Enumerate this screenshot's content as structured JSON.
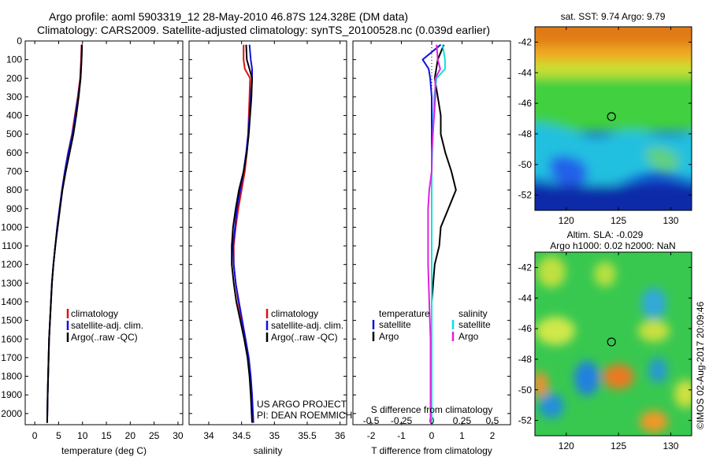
{
  "figure": {
    "title_line1": "Argo profile: aoml 5903319_12 28-May-2010 46.87S 124.328E (DM data)",
    "title_line2": "Climatology: CARS2009. Satellite-adjusted climatology: synTS_20100528.nc (0.039d earlier)",
    "project_line1": "US ARGO PROJECT",
    "project_line2": "PI: DEAN ROEMMICH",
    "credit": "©IMOS 02-Aug-2017 20:09:46"
  },
  "colors": {
    "climatology": "#e01010",
    "satellite": "#1010e0",
    "argo": "#000000",
    "argo_s": "#e020e0",
    "satellite_s": "#10e0e0"
  },
  "chart_data": [
    {
      "type": "line",
      "id": "temperature",
      "xlabel": "temperature (deg C)",
      "ylabel": "",
      "xlim": [
        -2,
        31
      ],
      "ylim": [
        2060,
        0
      ],
      "xticks": [
        "0",
        "5",
        "10",
        "15",
        "20",
        "25",
        "30"
      ],
      "xtick_values": [
        0,
        5,
        10,
        15,
        20,
        25,
        30
      ],
      "yticks": [
        "0",
        "100",
        "200",
        "300",
        "400",
        "500",
        "600",
        "700",
        "800",
        "900",
        "1000",
        "1100",
        "1200",
        "1300",
        "1400",
        "1500",
        "1600",
        "1700",
        "1800",
        "1900",
        "2000"
      ],
      "ytick_values": [
        0,
        100,
        200,
        300,
        400,
        500,
        600,
        700,
        800,
        900,
        1000,
        1100,
        1200,
        1300,
        1400,
        1500,
        1600,
        1700,
        1800,
        1900,
        2000
      ],
      "legend": [
        "climatology",
        "satellite-adj. clim.",
        "Argo(..raw -QC)"
      ],
      "series": [
        {
          "name": "climatology",
          "color_key": "climatology",
          "depth": [
            20,
            100,
            200,
            300,
            400,
            500,
            600,
            700,
            800,
            900,
            1000,
            1100,
            1200,
            1300,
            1400,
            1500,
            1600,
            1700,
            1800,
            1900,
            2050
          ],
          "values": [
            9.8,
            9.7,
            9.5,
            9.0,
            8.4,
            7.8,
            7.0,
            6.3,
            5.7,
            5.2,
            4.7,
            4.3,
            3.9,
            3.6,
            3.4,
            3.2,
            3.0,
            2.9,
            2.8,
            2.7,
            2.6
          ]
        },
        {
          "name": "satellite",
          "color_key": "satellite",
          "depth": [
            20,
            100,
            200,
            300,
            400,
            500,
            600,
            700,
            800,
            900,
            1000,
            1100,
            1200,
            1300,
            1400,
            1500,
            1600,
            1700,
            1800,
            1900,
            2050
          ],
          "values": [
            9.9,
            9.8,
            9.6,
            9.1,
            8.5,
            7.9,
            7.0,
            6.3,
            5.7,
            5.2,
            4.7,
            4.3,
            3.9,
            3.6,
            3.4,
            3.2,
            3.0,
            2.9,
            2.8,
            2.7,
            2.6
          ]
        },
        {
          "name": "Argo",
          "color_key": "argo",
          "depth": [
            20,
            100,
            200,
            300,
            400,
            500,
            600,
            700,
            800,
            900,
            1000,
            1100,
            1200,
            1300,
            1400,
            1500,
            1600,
            1700,
            1800,
            1900,
            2050
          ],
          "values": [
            9.9,
            9.8,
            9.6,
            9.2,
            8.7,
            8.1,
            7.3,
            6.5,
            5.8,
            5.3,
            4.8,
            4.3,
            3.9,
            3.6,
            3.4,
            3.2,
            3.0,
            2.9,
            2.8,
            2.7,
            2.6
          ]
        }
      ]
    },
    {
      "type": "line",
      "id": "salinity",
      "xlabel": "salinity",
      "xlim": [
        33.7,
        36.1
      ],
      "ylim": [
        2060,
        0
      ],
      "xticks": [
        "34",
        "34.5",
        "35",
        "35.5",
        "36"
      ],
      "xtick_values": [
        34,
        34.5,
        35,
        35.5,
        36
      ],
      "legend": [
        "climatology",
        "satellite-adj. clim.",
        "Argo(..raw -QC)"
      ],
      "series": [
        {
          "name": "climatology",
          "color_key": "climatology",
          "depth": [
            20,
            100,
            150,
            200,
            300,
            400,
            500,
            600,
            700,
            800,
            900,
            1000,
            1100,
            1200,
            1300,
            1400,
            1500,
            1600,
            1700,
            1800,
            1900,
            2050
          ],
          "values": [
            34.53,
            34.53,
            34.55,
            34.63,
            34.62,
            34.61,
            34.6,
            34.58,
            34.55,
            34.5,
            34.45,
            34.41,
            34.38,
            34.38,
            34.41,
            34.45,
            34.5,
            34.55,
            34.6,
            34.63,
            34.65,
            34.68
          ]
        },
        {
          "name": "satellite",
          "color_key": "satellite",
          "depth": [
            20,
            100,
            150,
            200,
            300,
            400,
            500,
            600,
            700,
            800,
            900,
            1000,
            1100,
            1200,
            1300,
            1400,
            1500,
            1600,
            1700,
            1800,
            1900,
            2050
          ],
          "values": [
            34.62,
            34.64,
            34.66,
            34.66,
            34.64,
            34.62,
            34.6,
            34.57,
            34.53,
            34.48,
            34.43,
            34.4,
            34.37,
            34.38,
            34.41,
            34.46,
            34.51,
            34.56,
            34.61,
            34.64,
            34.66,
            34.68
          ]
        },
        {
          "name": "Argo",
          "color_key": "argo",
          "depth": [
            20,
            100,
            150,
            200,
            300,
            400,
            500,
            600,
            700,
            800,
            900,
            1000,
            1100,
            1200,
            1300,
            1400,
            1500,
            1600,
            1700,
            1800,
            1900,
            2050
          ],
          "values": [
            34.57,
            34.58,
            34.62,
            34.66,
            34.65,
            34.63,
            34.61,
            34.58,
            34.53,
            34.46,
            34.41,
            34.37,
            34.35,
            34.35,
            34.38,
            34.42,
            34.48,
            34.54,
            34.59,
            34.62,
            34.64,
            34.66
          ]
        }
      ]
    },
    {
      "type": "line",
      "id": "differences",
      "xlabel": "T difference from climatology",
      "xlabel_top": "S difference from climatology",
      "xlim": [
        -2.6,
        2.6
      ],
      "ylim": [
        2060,
        0
      ],
      "xticks": [
        "-2",
        "-1",
        "0",
        "1",
        "2"
      ],
      "xtick_values": [
        -2,
        -1,
        0,
        1,
        2
      ],
      "s_xticks": [
        "-0.5",
        "-0.25",
        "0",
        "0.25",
        "0.5"
      ],
      "s_xtick_values": [
        -0.5,
        -0.25,
        0,
        0.25,
        0.5
      ],
      "s_scale": 4,
      "legend_t_title": "temperature",
      "legend_s_title": "salinity",
      "legend": [
        "satellite",
        "Argo",
        "satellite",
        "Argo"
      ],
      "series": [
        {
          "name": "T satellite",
          "color_key": "satellite",
          "depth": [
            20,
            100,
            150,
            200,
            300,
            400,
            500,
            600,
            700,
            800,
            900,
            1000,
            1100,
            1200,
            1400,
            1600,
            1800,
            2050
          ],
          "values": [
            0.3,
            -0.3,
            -0.1,
            -0.05,
            0,
            0,
            0,
            0,
            0,
            0,
            0,
            0,
            0,
            0,
            0,
            0,
            0,
            0
          ]
        },
        {
          "name": "T Argo",
          "color_key": "argo",
          "depth": [
            20,
            100,
            150,
            200,
            300,
            400,
            500,
            600,
            700,
            800,
            900,
            1000,
            1100,
            1200,
            1400,
            1600,
            1800,
            2050
          ],
          "values": [
            0.4,
            0.2,
            0.15,
            0.1,
            0.2,
            0.3,
            0.3,
            0.45,
            0.65,
            0.8,
            0.55,
            0.3,
            0.25,
            0.1,
            0,
            0,
            0,
            0
          ]
        },
        {
          "name": "S satellite",
          "color_key": "satellite_s",
          "depth": [
            20,
            100,
            150,
            200,
            300,
            400,
            500,
            600,
            700,
            800,
            900,
            1000,
            1100,
            1200,
            1400,
            1600,
            1800,
            2050
          ],
          "values": [
            0.09,
            0.11,
            0.11,
            0.04,
            0.02,
            0.015,
            0.01,
            0.005,
            0,
            0,
            0,
            0,
            0,
            0,
            0,
            0,
            0,
            0
          ]
        },
        {
          "name": "S Argo",
          "color_key": "argo_s",
          "depth": [
            20,
            100,
            150,
            200,
            300,
            400,
            500,
            600,
            700,
            800,
            900,
            1000,
            1100,
            1200,
            1400,
            1600,
            1800,
            2050
          ],
          "values": [
            0.04,
            0.05,
            0.07,
            0.03,
            0.03,
            0.02,
            0.01,
            0.0,
            0.0,
            -0.02,
            -0.03,
            -0.03,
            -0.03,
            -0.03,
            -0.02,
            -0.01,
            -0.01,
            -0.01
          ]
        }
      ]
    },
    {
      "type": "heatmap",
      "id": "sst_map",
      "title": "sat. SST: 9.74  Argo: 9.79",
      "xlim": [
        117,
        132
      ],
      "ylim": [
        -53,
        -41
      ],
      "xticks": [
        "120",
        "125",
        "130"
      ],
      "xtick_values": [
        120,
        125,
        130
      ],
      "yticks": [
        "-42",
        "-44",
        "-46",
        "-48",
        "-50",
        "-52"
      ],
      "ytick_values": [
        -42,
        -44,
        -46,
        -48,
        -50,
        -52
      ],
      "marker": {
        "lon": 124.328,
        "lat": -46.87
      }
    },
    {
      "type": "heatmap",
      "id": "sla_map",
      "title_line1": "Altim. SLA: -0.029",
      "title_line2": "Argo h1000: 0.02  h2000: NaN",
      "xlim": [
        117,
        132
      ],
      "ylim": [
        -53,
        -41
      ],
      "xticks": [
        "120",
        "125",
        "130"
      ],
      "xtick_values": [
        120,
        125,
        130
      ],
      "yticks": [
        "-42",
        "-44",
        "-46",
        "-48",
        "-50",
        "-52"
      ],
      "ytick_values": [
        -42,
        -44,
        -46,
        -48,
        -50,
        -52
      ],
      "marker": {
        "lon": 124.328,
        "lat": -46.87
      }
    }
  ]
}
